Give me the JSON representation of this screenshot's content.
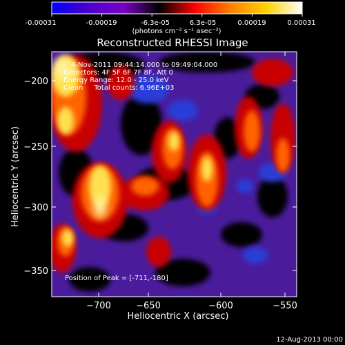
{
  "colorbar": {
    "tick_labels": [
      "-0.00031",
      "-0.00019",
      "-6.3e-05",
      "6.3e-05",
      "0.00019",
      "0.00031"
    ],
    "units_label": "(photons cm⁻² s⁻¹ asec⁻²)",
    "colors": [
      "#0000ff",
      "#4a00cc",
      "#7a00c8",
      "#000000",
      "#ff0000",
      "#ff8000",
      "#ffd200",
      "#ffffff"
    ]
  },
  "plot": {
    "title": "Reconstructed RHESSI Image",
    "xlabel": "Heliocentric X (arcsec)",
    "ylabel": "Heliocentric Y (arcsec)",
    "x_ticks": [
      {
        "value": -700,
        "label": "−700"
      },
      {
        "value": -650,
        "label": "−650"
      },
      {
        "value": -600,
        "label": "−600"
      },
      {
        "value": -550,
        "label": "−550"
      }
    ],
    "y_ticks": [
      {
        "value": -200,
        "label": "−200"
      },
      {
        "value": -250,
        "label": "−250"
      },
      {
        "value": -300,
        "label": "−300"
      },
      {
        "value": -350,
        "label": "−350"
      }
    ],
    "xlim": [
      -735,
      -545
    ],
    "ylim": [
      -372,
      -178
    ]
  },
  "annotations": {
    "time_range": "4-Nov-2011 09:44:14.000 to 09:49:04.000",
    "detectors": "Detectors: 4F 5F 6F 7F 8F, Att 0",
    "energy_range": "Energy Range: 12.0 - 25.0 keV",
    "method_counts": "Clean     Total counts: 6.96E+03",
    "peak_position": "Position of Peak = [-711,-180]"
  },
  "footer": {
    "date": "12-Aug-2013 00:00"
  },
  "image_colors": {
    "background": "#4a1c9c",
    "dark": "#000000",
    "red": "#c80000",
    "orange": "#ff6400",
    "yellow": "#ffe050",
    "pale": "#fff2a0",
    "blue": "#2a3cd8"
  }
}
